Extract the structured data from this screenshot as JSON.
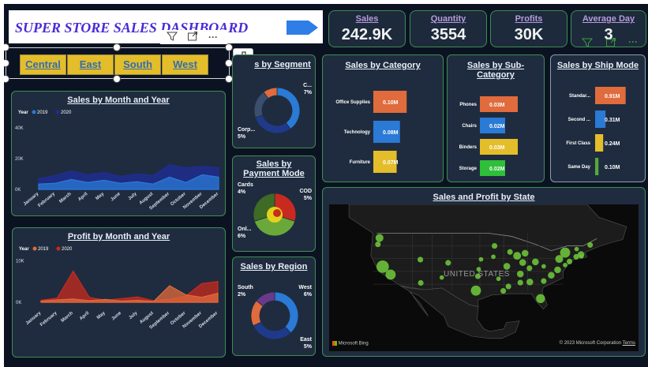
{
  "header": {
    "title": "SUPER STORE SALES DASHBOARD"
  },
  "kpis": [
    {
      "label": "Sales",
      "value": "242.9K"
    },
    {
      "label": "Quantity",
      "value": "3554"
    },
    {
      "label": "Profits",
      "value": "30K"
    },
    {
      "label": "Average Day",
      "value": "3"
    }
  ],
  "slicer": {
    "options": [
      "Central",
      "East",
      "South",
      "West"
    ]
  },
  "icons": {
    "filter": "filter-icon",
    "focus": "focus-mode-icon",
    "more": "more-options-icon",
    "format": "format-visual-icon",
    "analytics": "analytics-icon"
  },
  "cards": {
    "sales_month": {
      "title": "Sales by Month and Year"
    },
    "profit_month": {
      "title": "Profit by Month and Year"
    },
    "segment": {
      "title": "Sales by Segment",
      "title_visible": "s by Segment"
    },
    "payment": {
      "title": "Sales by Payment Mode"
    },
    "region": {
      "title": "Sales by Region"
    },
    "category": {
      "title": "Sales by Category"
    },
    "subcategory": {
      "title": "Sales by Sub-Category"
    },
    "shipmode": {
      "title": "Sales by Ship Mode"
    },
    "state": {
      "title": "Sales and Profit by State"
    }
  },
  "map": {
    "country_label": "UNITED STATES",
    "attribution": "Microsoft Bing",
    "copyright": "© 2023 Microsoft Corporation",
    "terms": "Terms"
  },
  "colors": {
    "accent_blue": "#2f6db3",
    "orange": "#e06b3c",
    "yellow": "#e4bd2a",
    "green": "#57a83a",
    "card_bg": "#1f2c3f",
    "card_border": "#3f8d52"
  },
  "chart_data": [
    {
      "id": "sales_by_month",
      "type": "area",
      "title": "Sales by Month and Year",
      "legend_title": "Year",
      "legend_placement": "top-left",
      "categories": [
        "January",
        "February",
        "March",
        "April",
        "May",
        "June",
        "July",
        "August",
        "September",
        "October",
        "November",
        "December"
      ],
      "y_ticks": [
        "40K",
        "20K",
        "0K"
      ],
      "ylim": [
        0,
        40000
      ],
      "series": [
        {
          "name": "2019",
          "color": "#2a7ad6",
          "values": [
            3500,
            4000,
            6500,
            4500,
            6000,
            4000,
            5000,
            3500,
            8000,
            4500,
            9500,
            8000
          ]
        },
        {
          "name": "2020",
          "color": "#1f2c9a",
          "values": [
            7000,
            9000,
            12000,
            9500,
            11000,
            8500,
            10000,
            9000,
            16000,
            14000,
            15000,
            14000
          ]
        }
      ]
    },
    {
      "id": "profit_by_month",
      "type": "area",
      "title": "Profit by Month and Year",
      "legend_title": "Year",
      "legend_placement": "top-left",
      "categories": [
        "January",
        "February",
        "March",
        "April",
        "May",
        "June",
        "July",
        "August",
        "September",
        "October",
        "November",
        "December"
      ],
      "y_ticks": [
        "10K",
        "0K"
      ],
      "ylim": [
        -1500,
        11000
      ],
      "series": [
        {
          "name": "2019",
          "color": "#e06b3c",
          "values": [
            300,
            600,
            800,
            400,
            700,
            300,
            500,
            200,
            4000,
            1800,
            1200,
            2200
          ]
        },
        {
          "name": "2020",
          "color": "#c92a1f",
          "values": [
            500,
            1000,
            7500,
            1200,
            500,
            900,
            1300,
            400,
            800,
            1500,
            4500,
            5000
          ]
        }
      ]
    },
    {
      "id": "sales_by_segment",
      "type": "pie",
      "title": "Sales by Segment",
      "labels": [
        {
          "text": "C...",
          "value": "7%"
        },
        {
          "text": "Corp...",
          "value": "5%"
        }
      ],
      "slices": [
        {
          "value": 40,
          "color": "#2a7ad6"
        },
        {
          "value": 30,
          "color": "#1f3a8a"
        },
        {
          "value": 20,
          "color": "#3a4f6e"
        },
        {
          "value": 10,
          "color": "#e06b3c"
        }
      ]
    },
    {
      "id": "sales_by_payment",
      "type": "pie",
      "title": "Sales by Payment Mode",
      "labels": [
        {
          "text": "Cards",
          "value": "4%"
        },
        {
          "text": "COD",
          "value": "5%"
        },
        {
          "text": "Onl...",
          "value": "6%"
        }
      ],
      "slices": [
        {
          "value": 30,
          "color": "#c92a1f"
        },
        {
          "value": 40,
          "color": "#6aa83a"
        },
        {
          "value": 30,
          "color": "#3e6b25"
        }
      ]
    },
    {
      "id": "sales_by_region",
      "type": "pie",
      "title": "Sales by Region",
      "labels": [
        {
          "text": "South",
          "value": "2%"
        },
        {
          "text": "West",
          "value": "6%"
        },
        {
          "text": "East",
          "value": "5%"
        }
      ],
      "slices": [
        {
          "value": 38,
          "color": "#2a7ad6"
        },
        {
          "value": 30,
          "color": "#1f3a8a"
        },
        {
          "value": 18,
          "color": "#e06b3c"
        },
        {
          "value": 14,
          "color": "#6a3a8a"
        }
      ]
    },
    {
      "id": "sales_by_category",
      "type": "bar",
      "title": "Sales by Category",
      "categories": [
        "Office Supplies",
        "Technology",
        "Furniture"
      ],
      "values": [
        0.1,
        0.08,
        0.07
      ],
      "value_labels": [
        "0.10M",
        "0.08M",
        "0.07M"
      ],
      "colors": [
        "#e06b3c",
        "#2a7ad6",
        "#e4bd2a"
      ],
      "xlim": [
        0,
        0.18
      ]
    },
    {
      "id": "sales_by_subcategory",
      "type": "bar",
      "title": "Sales by Sub-Category",
      "categories": [
        "Phones",
        "Chairs",
        "Binders",
        "Storage"
      ],
      "values": [
        0.03,
        0.02,
        0.03,
        0.02
      ],
      "value_labels": [
        "0.03M",
        "0.02M",
        "0.03M",
        "0.02M"
      ],
      "colors": [
        "#e06b3c",
        "#2a7ad6",
        "#e4bd2a",
        "#2fbf3a"
      ],
      "xlim": [
        0,
        0.05
      ]
    },
    {
      "id": "sales_by_shipmode",
      "type": "bar",
      "title": "Sales by Ship Mode",
      "categories": [
        "Standar...",
        "Second ...",
        "First Class",
        "Same Day"
      ],
      "values": [
        0.91,
        0.31,
        0.24,
        0.1
      ],
      "value_labels": [
        "0.91M",
        "0.31M",
        "0.24M",
        "0.10M"
      ],
      "colors": [
        "#e06b3c",
        "#2a7ad6",
        "#e4bd2a",
        "#57a83a"
      ],
      "xlim": [
        0,
        1.6
      ]
    },
    {
      "id": "sales_profit_state",
      "type": "scatter",
      "title": "Sales and Profit by State",
      "color": "#6cc23a",
      "points": [
        {
          "x": -122.3,
          "y": 47.5,
          "size": 7
        },
        {
          "x": -122.7,
          "y": 45.5,
          "size": 5
        },
        {
          "x": -121.5,
          "y": 38.5,
          "size": 11
        },
        {
          "x": -119.5,
          "y": 36.0,
          "size": 9
        },
        {
          "x": -112.0,
          "y": 40.7,
          "size": 5
        },
        {
          "x": -111.9,
          "y": 33.4,
          "size": 5
        },
        {
          "x": -105.0,
          "y": 39.7,
          "size": 5
        },
        {
          "x": -106.6,
          "y": 35.1,
          "size": 4
        },
        {
          "x": -97.5,
          "y": 35.5,
          "size": 5
        },
        {
          "x": -98.0,
          "y": 31.0,
          "size": 9
        },
        {
          "x": -96.7,
          "y": 40.8,
          "size": 4
        },
        {
          "x": -97.3,
          "y": 37.7,
          "size": 4
        },
        {
          "x": -93.3,
          "y": 45.0,
          "size": 5
        },
        {
          "x": -93.6,
          "y": 41.6,
          "size": 4
        },
        {
          "x": -90.2,
          "y": 38.6,
          "size": 6
        },
        {
          "x": -92.3,
          "y": 34.7,
          "size": 4
        },
        {
          "x": -89.4,
          "y": 43.1,
          "size": 5
        },
        {
          "x": -87.6,
          "y": 41.9,
          "size": 7
        },
        {
          "x": -86.2,
          "y": 39.8,
          "size": 6
        },
        {
          "x": -85.6,
          "y": 42.7,
          "size": 6
        },
        {
          "x": -83.0,
          "y": 40.0,
          "size": 6
        },
        {
          "x": -84.5,
          "y": 38.0,
          "size": 5
        },
        {
          "x": -86.8,
          "y": 36.2,
          "size": 6
        },
        {
          "x": -89.8,
          "y": 32.3,
          "size": 5
        },
        {
          "x": -86.8,
          "y": 33.5,
          "size": 5
        },
        {
          "x": -84.4,
          "y": 33.7,
          "size": 6
        },
        {
          "x": -81.7,
          "y": 28.5,
          "size": 8
        },
        {
          "x": -80.9,
          "y": 34.0,
          "size": 5
        },
        {
          "x": -79.0,
          "y": 35.8,
          "size": 6
        },
        {
          "x": -77.4,
          "y": 37.5,
          "size": 6
        },
        {
          "x": -80.9,
          "y": 38.6,
          "size": 4
        },
        {
          "x": -77.0,
          "y": 40.9,
          "size": 7
        },
        {
          "x": -74.4,
          "y": 40.1,
          "size": 5
        },
        {
          "x": -75.5,
          "y": 39.0,
          "size": 4
        },
        {
          "x": -75.5,
          "y": 42.9,
          "size": 9
        },
        {
          "x": -72.7,
          "y": 41.6,
          "size": 5
        },
        {
          "x": -71.5,
          "y": 42.3,
          "size": 6
        },
        {
          "x": -71.4,
          "y": 41.7,
          "size": 4
        },
        {
          "x": -72.6,
          "y": 44.0,
          "size": 4
        },
        {
          "x": -69.2,
          "y": 45.3,
          "size": 5
        },
        {
          "x": -91.1,
          "y": 30.9,
          "size": 5
        }
      ]
    }
  ]
}
